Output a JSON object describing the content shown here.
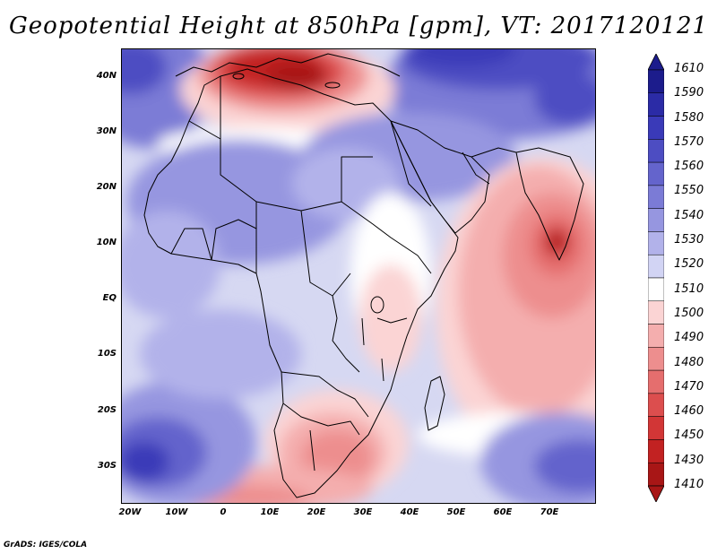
{
  "title": "Geopotential Height at 850hPa [gpm], VT: 2017120121",
  "credit": "GrADS: IGES/COLA",
  "axes": {
    "lat_labels": [
      "40N",
      "30N",
      "20N",
      "10N",
      "EQ",
      "10S",
      "20S",
      "30S"
    ],
    "lon_labels": [
      "20W",
      "10W",
      "0",
      "10E",
      "20E",
      "30E",
      "40E",
      "50E",
      "60E",
      "70E"
    ]
  },
  "colorbar": {
    "levels": [
      "1610",
      "1590",
      "1580",
      "1570",
      "1560",
      "1550",
      "1540",
      "1530",
      "1520",
      "1510",
      "1500",
      "1490",
      "1480",
      "1470",
      "1460",
      "1450",
      "1430",
      "1410"
    ],
    "colors": [
      "#1c1c8c",
      "#2b2ba6",
      "#3a3ab8",
      "#4d4dc2",
      "#6464cc",
      "#7b7bd6",
      "#9696e0",
      "#b2b2ea",
      "#d2d4f4",
      "#ffffff",
      "#fbd4d4",
      "#f4aeae",
      "#ed8e8e",
      "#e56e6e",
      "#dc4e4e",
      "#d23636",
      "#c22222",
      "#a81616"
    ]
  },
  "map": {
    "background": "#dadcf2",
    "coast_color": "#000000"
  }
}
